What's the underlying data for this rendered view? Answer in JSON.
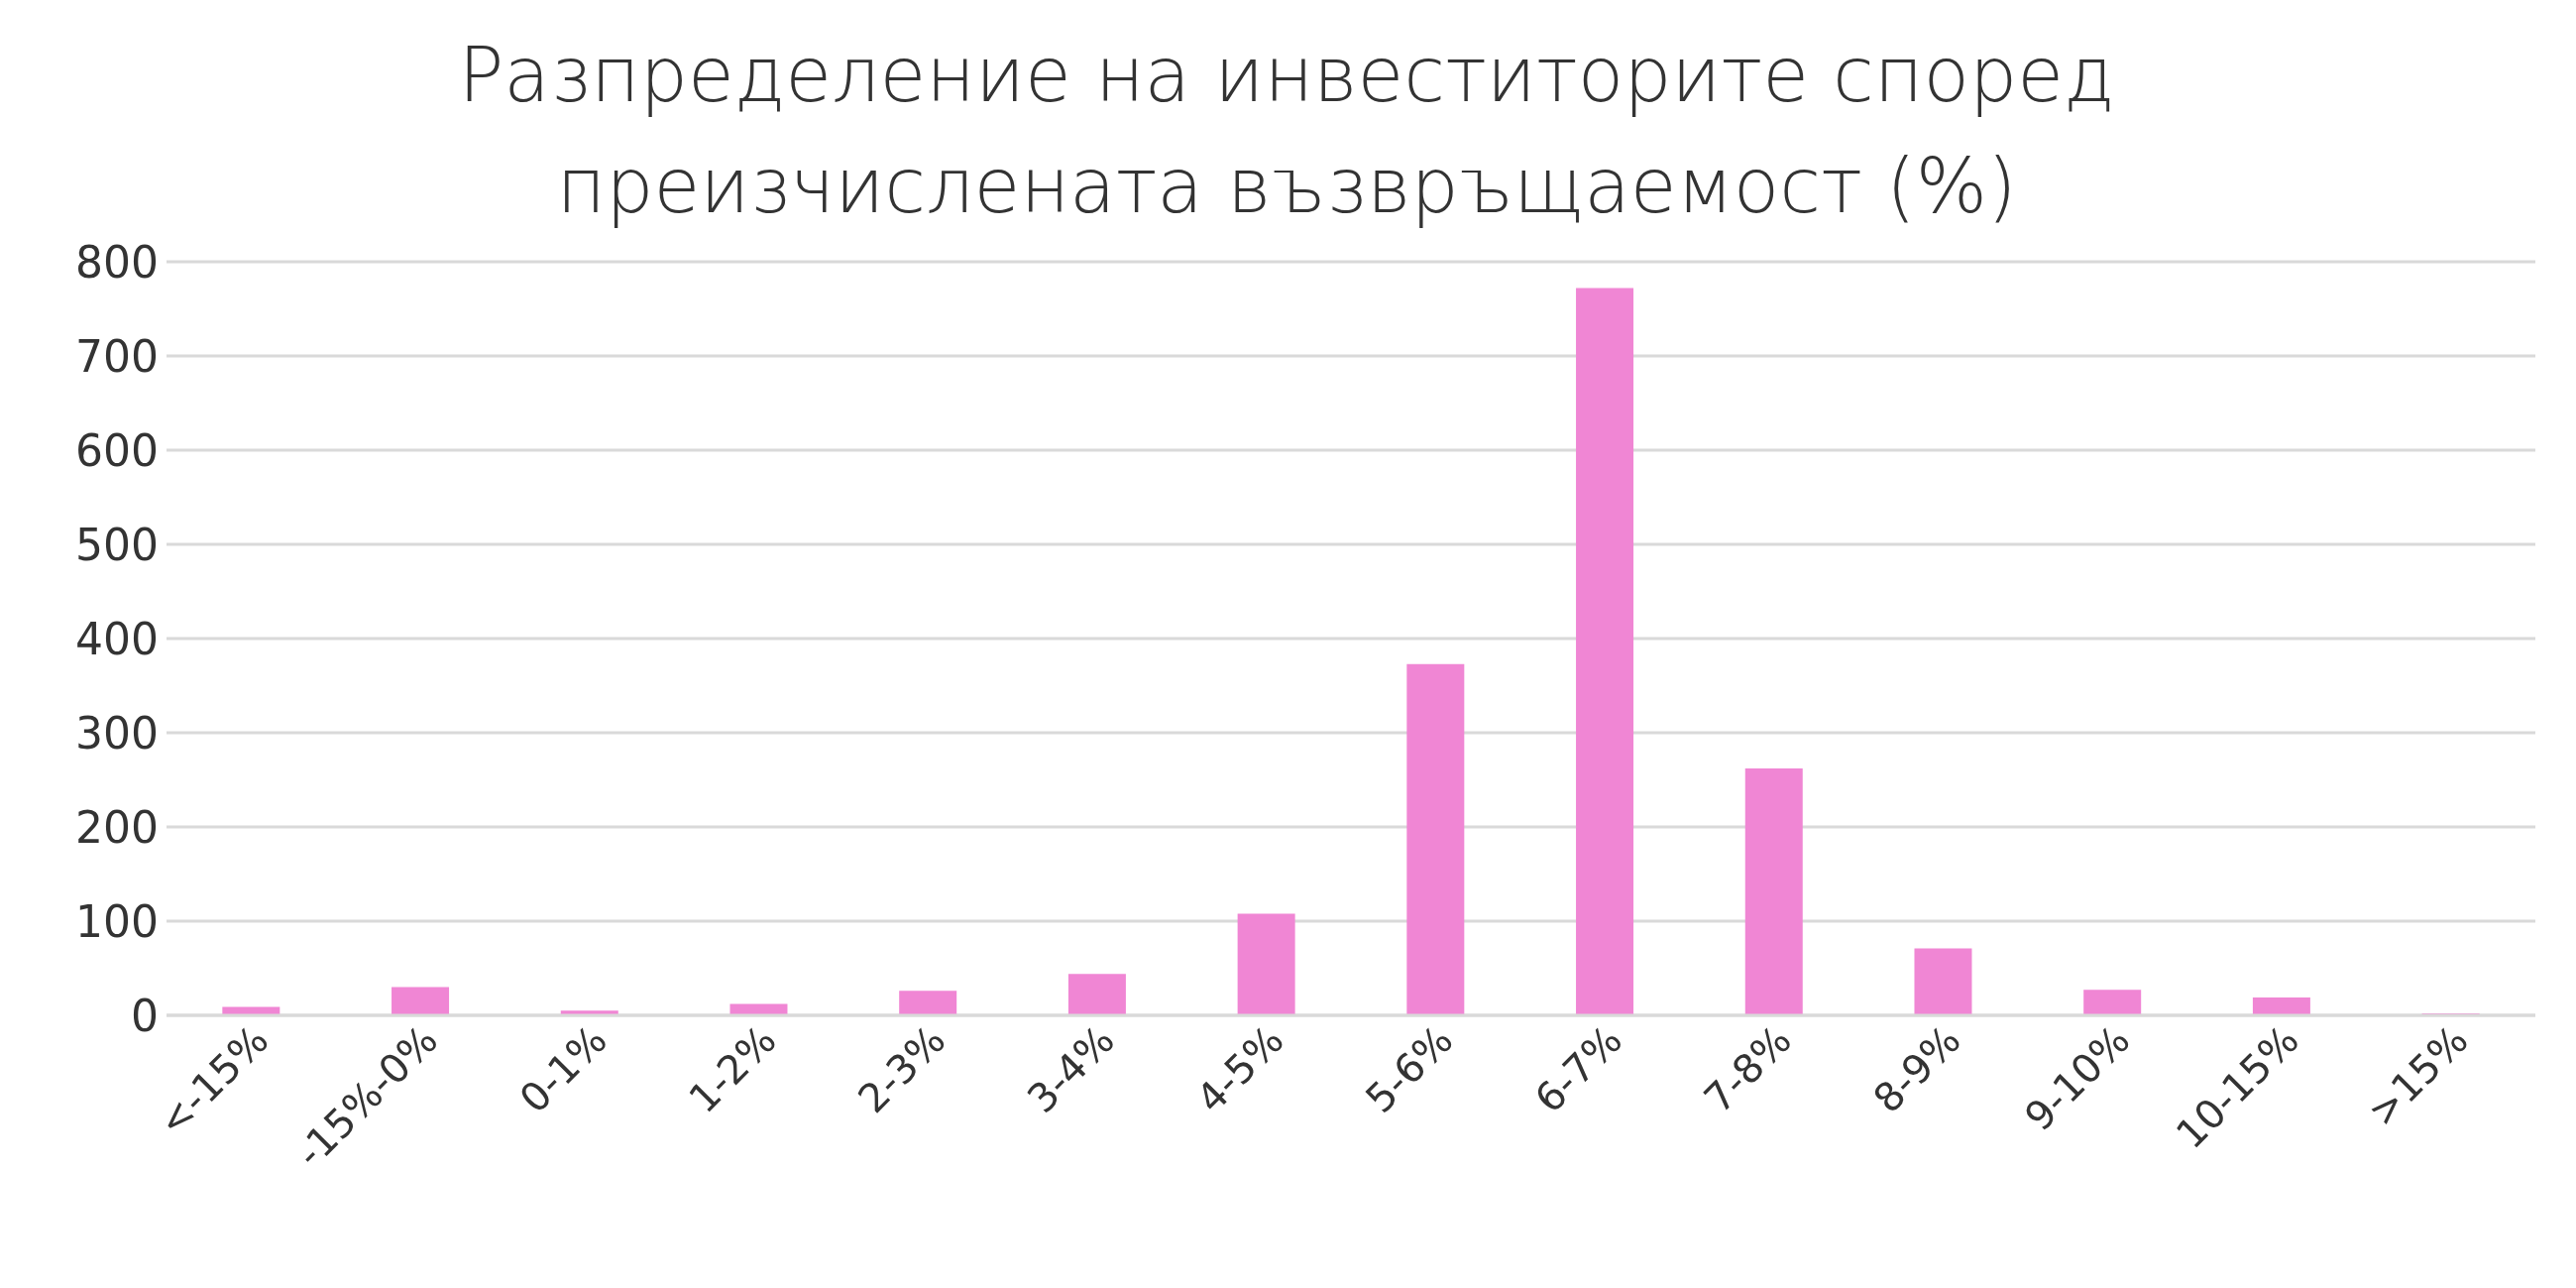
{
  "chart_data": {
    "type": "bar",
    "title": "Разпределение на инвеститорите според преизчислената възвръщаемост (%)",
    "categories": [
      "<-15%",
      "-15%-0%",
      "0-1%",
      "1-2%",
      "2-3%",
      "3-4%",
      "4-5%",
      "5-6%",
      "6-7%",
      "7-8%",
      "8-9%",
      "9-10%",
      "10-15%",
      ">15%"
    ],
    "values": [
      9,
      30,
      5,
      12,
      26,
      44,
      108,
      373,
      772,
      262,
      71,
      27,
      19,
      2
    ],
    "color": "#f086d4",
    "ylim": [
      0,
      800
    ],
    "yticks": [
      0,
      100,
      200,
      300,
      400,
      500,
      600,
      700,
      800
    ],
    "grid": "y",
    "legend": false
  }
}
